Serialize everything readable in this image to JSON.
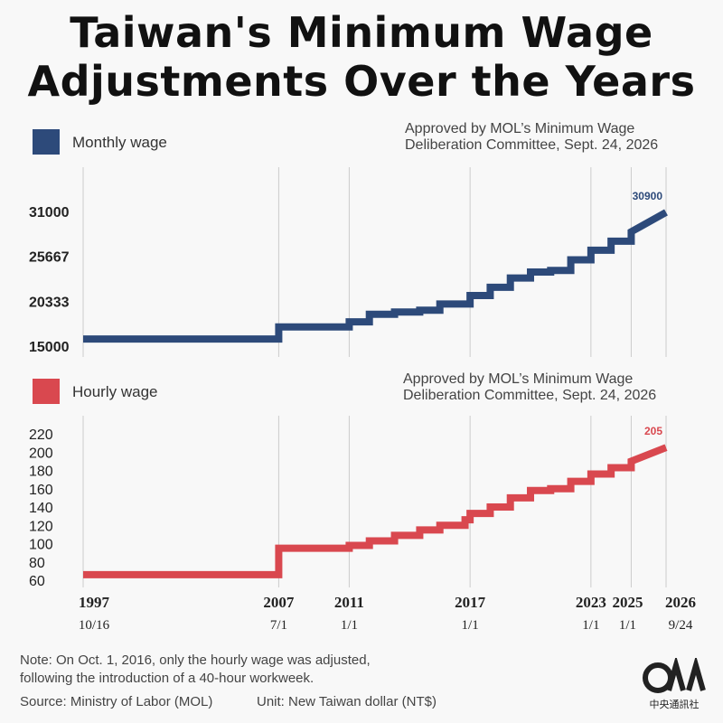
{
  "title_line1": "Taiwan's Minimum Wage",
  "title_line2": "Adjustments Over the Years",
  "colors": {
    "monthly": "#2d4a7a",
    "hourly": "#d9484f",
    "grid": "#cccccc",
    "label": "#333333"
  },
  "approval_note_line1": "Approved by MOL’s Minimum Wage",
  "approval_note_line2": "Deliberation Committee, Sept. 24, 2026",
  "chart_data": [
    {
      "type": "line",
      "name": "Monthly wage",
      "legend": "Monthly wage",
      "ylim": [
        15000,
        31000
      ],
      "yticks": [
        15000,
        20333,
        25667,
        31000
      ],
      "x_range": [
        1997.79,
        2026.73
      ],
      "end_label": "30900",
      "steps": [
        {
          "x": 1997.79,
          "y": 15840
        },
        {
          "x": 2007.5,
          "y": 17280
        },
        {
          "x": 2011.0,
          "y": 17880
        },
        {
          "x": 2012.0,
          "y": 18780
        },
        {
          "x": 2013.25,
          "y": 19047
        },
        {
          "x": 2014.5,
          "y": 19273
        },
        {
          "x": 2015.5,
          "y": 20008
        },
        {
          "x": 2017.0,
          "y": 21009
        },
        {
          "x": 2018.0,
          "y": 22000
        },
        {
          "x": 2019.0,
          "y": 23100
        },
        {
          "x": 2020.0,
          "y": 23800
        },
        {
          "x": 2021.0,
          "y": 24000
        },
        {
          "x": 2022.0,
          "y": 25250
        },
        {
          "x": 2023.0,
          "y": 26400
        },
        {
          "x": 2024.0,
          "y": 27470
        },
        {
          "x": 2025.0,
          "y": 28590
        },
        {
          "x": 2026.73,
          "y": 30900
        }
      ]
    },
    {
      "type": "line",
      "name": "Hourly wage",
      "legend": "Hourly wage",
      "ylim": [
        60,
        220
      ],
      "yticks": [
        60,
        80,
        100,
        120,
        140,
        160,
        180,
        200,
        220
      ],
      "x_range": [
        1997.79,
        2026.73
      ],
      "end_label": "205",
      "steps": [
        {
          "x": 1997.79,
          "y": 66
        },
        {
          "x": 2007.5,
          "y": 95
        },
        {
          "x": 2011.0,
          "y": 98
        },
        {
          "x": 2012.0,
          "y": 103
        },
        {
          "x": 2013.25,
          "y": 109
        },
        {
          "x": 2014.5,
          "y": 115
        },
        {
          "x": 2015.5,
          "y": 120
        },
        {
          "x": 2016.75,
          "y": 126
        },
        {
          "x": 2017.0,
          "y": 133
        },
        {
          "x": 2018.0,
          "y": 140
        },
        {
          "x": 2019.0,
          "y": 150
        },
        {
          "x": 2020.0,
          "y": 158
        },
        {
          "x": 2021.0,
          "y": 160
        },
        {
          "x": 2022.0,
          "y": 168
        },
        {
          "x": 2023.0,
          "y": 176
        },
        {
          "x": 2024.0,
          "y": 183
        },
        {
          "x": 2025.0,
          "y": 190
        },
        {
          "x": 2026.73,
          "y": 205
        }
      ]
    }
  ],
  "x_axis": {
    "ticks": [
      {
        "year": "1997",
        "date": "10/16",
        "x": 1997.79
      },
      {
        "year": "2007",
        "date": "7/1",
        "x": 2007.5
      },
      {
        "year": "2011",
        "date": "1/1",
        "x": 2011.0
      },
      {
        "year": "2017",
        "date": "1/1",
        "x": 2017.0
      },
      {
        "year": "2023",
        "date": "1/1",
        "x": 2023.0
      },
      {
        "year": "2025",
        "date": "1/1",
        "x": 2025.0
      },
      {
        "year": "2026",
        "date": "9/24",
        "x": 2026.73
      }
    ]
  },
  "footer": {
    "note_line1": "Note: On Oct. 1, 2016, only the hourly wage was adjusted,",
    "note_line2": "following the introduction of a 40-hour workweek.",
    "source": "Source: Ministry of Labor (MOL)",
    "unit": "Unit: New Taiwan dollar (NT$)",
    "logo_text": "中央通訊社",
    "logo_letters": "CNA"
  }
}
